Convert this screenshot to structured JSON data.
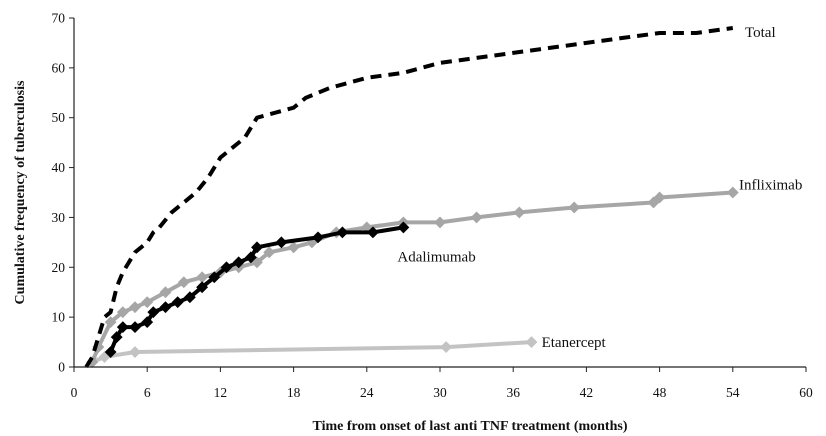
{
  "chart_data": {
    "type": "line",
    "title": "",
    "xlabel": "Time from onset of last anti TNF treatment (months)",
    "ylabel": "Cumulative frequency of tuberculosis",
    "xlim": [
      0,
      60
    ],
    "ylim": [
      0,
      70
    ],
    "xticks": [
      0,
      6,
      12,
      18,
      24,
      30,
      36,
      42,
      48,
      54,
      60
    ],
    "yticks": [
      0,
      10,
      20,
      30,
      40,
      50,
      60,
      70
    ],
    "grid": false,
    "legend": "none (series labeled directly)",
    "series": [
      {
        "name": "Total",
        "color": "#000000",
        "style": "dashed",
        "markers": false,
        "points": [
          [
            1.0,
            0
          ],
          [
            1.5,
            2
          ],
          [
            2.0,
            6
          ],
          [
            2.5,
            10
          ],
          [
            3.0,
            11
          ],
          [
            3.5,
            16
          ],
          [
            4.0,
            19
          ],
          [
            4.5,
            21
          ],
          [
            5.0,
            23
          ],
          [
            6.0,
            25
          ],
          [
            6.5,
            27
          ],
          [
            7.0,
            28
          ],
          [
            8.0,
            31
          ],
          [
            9.0,
            33
          ],
          [
            10.0,
            35
          ],
          [
            11.0,
            38
          ],
          [
            12.0,
            42
          ],
          [
            13.0,
            44
          ],
          [
            14.0,
            46
          ],
          [
            15.0,
            50
          ],
          [
            16.5,
            51
          ],
          [
            18.0,
            52
          ],
          [
            19.0,
            54
          ],
          [
            21.0,
            56
          ],
          [
            24.0,
            58
          ],
          [
            27.0,
            59
          ],
          [
            30.0,
            61
          ],
          [
            33.0,
            62
          ],
          [
            36.0,
            63
          ],
          [
            39.0,
            64
          ],
          [
            42.0,
            65
          ],
          [
            45.0,
            66
          ],
          [
            48.0,
            67
          ],
          [
            51.0,
            67
          ],
          [
            54.0,
            68
          ]
        ]
      },
      {
        "name": "Infliximab",
        "color": "#a6a6a6",
        "style": "solid",
        "markers": true,
        "points": [
          [
            1.5,
            1
          ],
          [
            2.0,
            4
          ],
          [
            3.0,
            9
          ],
          [
            4.0,
            11
          ],
          [
            5.0,
            12
          ],
          [
            6.0,
            13
          ],
          [
            7.5,
            15
          ],
          [
            9.0,
            17
          ],
          [
            10.5,
            18
          ],
          [
            12.0,
            19
          ],
          [
            13.5,
            20
          ],
          [
            15.0,
            21
          ],
          [
            16.0,
            23
          ],
          [
            18.0,
            24
          ],
          [
            19.5,
            25
          ],
          [
            21.5,
            27
          ],
          [
            24.0,
            28
          ],
          [
            27.0,
            29
          ],
          [
            30.0,
            29
          ],
          [
            33.0,
            30
          ],
          [
            36.5,
            31
          ],
          [
            41.0,
            32
          ],
          [
            47.5,
            33
          ],
          [
            48.0,
            34
          ],
          [
            54.0,
            35
          ]
        ]
      },
      {
        "name": "Adalimumab",
        "color": "#000000",
        "style": "solid",
        "markers": true,
        "points": [
          [
            3.0,
            3
          ],
          [
            3.5,
            6
          ],
          [
            4.0,
            8
          ],
          [
            5.0,
            8
          ],
          [
            6.0,
            9
          ],
          [
            6.5,
            11
          ],
          [
            7.5,
            12
          ],
          [
            8.5,
            13
          ],
          [
            9.5,
            14
          ],
          [
            10.5,
            16
          ],
          [
            11.5,
            18
          ],
          [
            12.5,
            20
          ],
          [
            13.5,
            21
          ],
          [
            14.5,
            22
          ],
          [
            15.0,
            24
          ],
          [
            17.0,
            25
          ],
          [
            20.0,
            26
          ],
          [
            22.0,
            27
          ],
          [
            24.5,
            27
          ],
          [
            27.0,
            28
          ]
        ]
      },
      {
        "name": "Etanercept",
        "color": "#c3c3c3",
        "style": "solid",
        "markers": true,
        "points": [
          [
            1.5,
            1
          ],
          [
            2.5,
            2
          ],
          [
            5.0,
            3
          ],
          [
            30.5,
            4
          ],
          [
            37.5,
            5
          ]
        ]
      }
    ],
    "labels": [
      {
        "text": "Total",
        "x": 55,
        "y": 68
      },
      {
        "text": "Infliximab",
        "x": 55,
        "y": 35
      },
      {
        "text": "Adalimumab",
        "x": 27,
        "y": 24
      },
      {
        "text": "Etanercept",
        "x": 38,
        "y": 5
      }
    ]
  }
}
